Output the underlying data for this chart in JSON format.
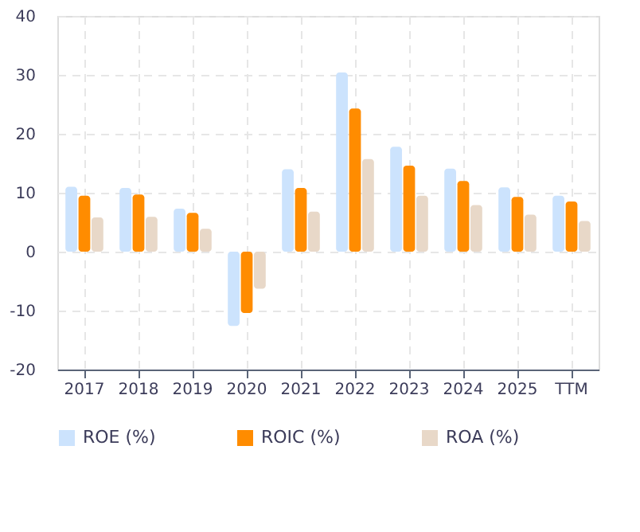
{
  "chart_data": {
    "type": "bar",
    "categories": [
      "2017",
      "2018",
      "2019",
      "2020",
      "2021",
      "2022",
      "2023",
      "2024",
      "2025",
      "TTM"
    ],
    "series": [
      {
        "name": "ROE (%)",
        "color": "#cce3fd",
        "values": [
          11.0,
          10.8,
          7.3,
          -12.6,
          14.0,
          30.4,
          17.8,
          14.1,
          10.9,
          9.5
        ]
      },
      {
        "name": "ROIC (%)",
        "color": "#ff8c00",
        "values": [
          9.5,
          9.7,
          6.6,
          -10.4,
          10.8,
          24.3,
          14.6,
          12.0,
          9.3,
          8.5
        ]
      },
      {
        "name": "ROA (%)",
        "color": "#e8d8c8",
        "values": [
          5.8,
          5.9,
          3.9,
          -6.3,
          6.8,
          15.7,
          9.5,
          7.9,
          6.3,
          5.2
        ]
      }
    ],
    "ylim": [
      -20,
      40
    ],
    "yticks": [
      -20,
      -10,
      0,
      10,
      20,
      30,
      40
    ],
    "grid": true,
    "legend": "bottom"
  }
}
